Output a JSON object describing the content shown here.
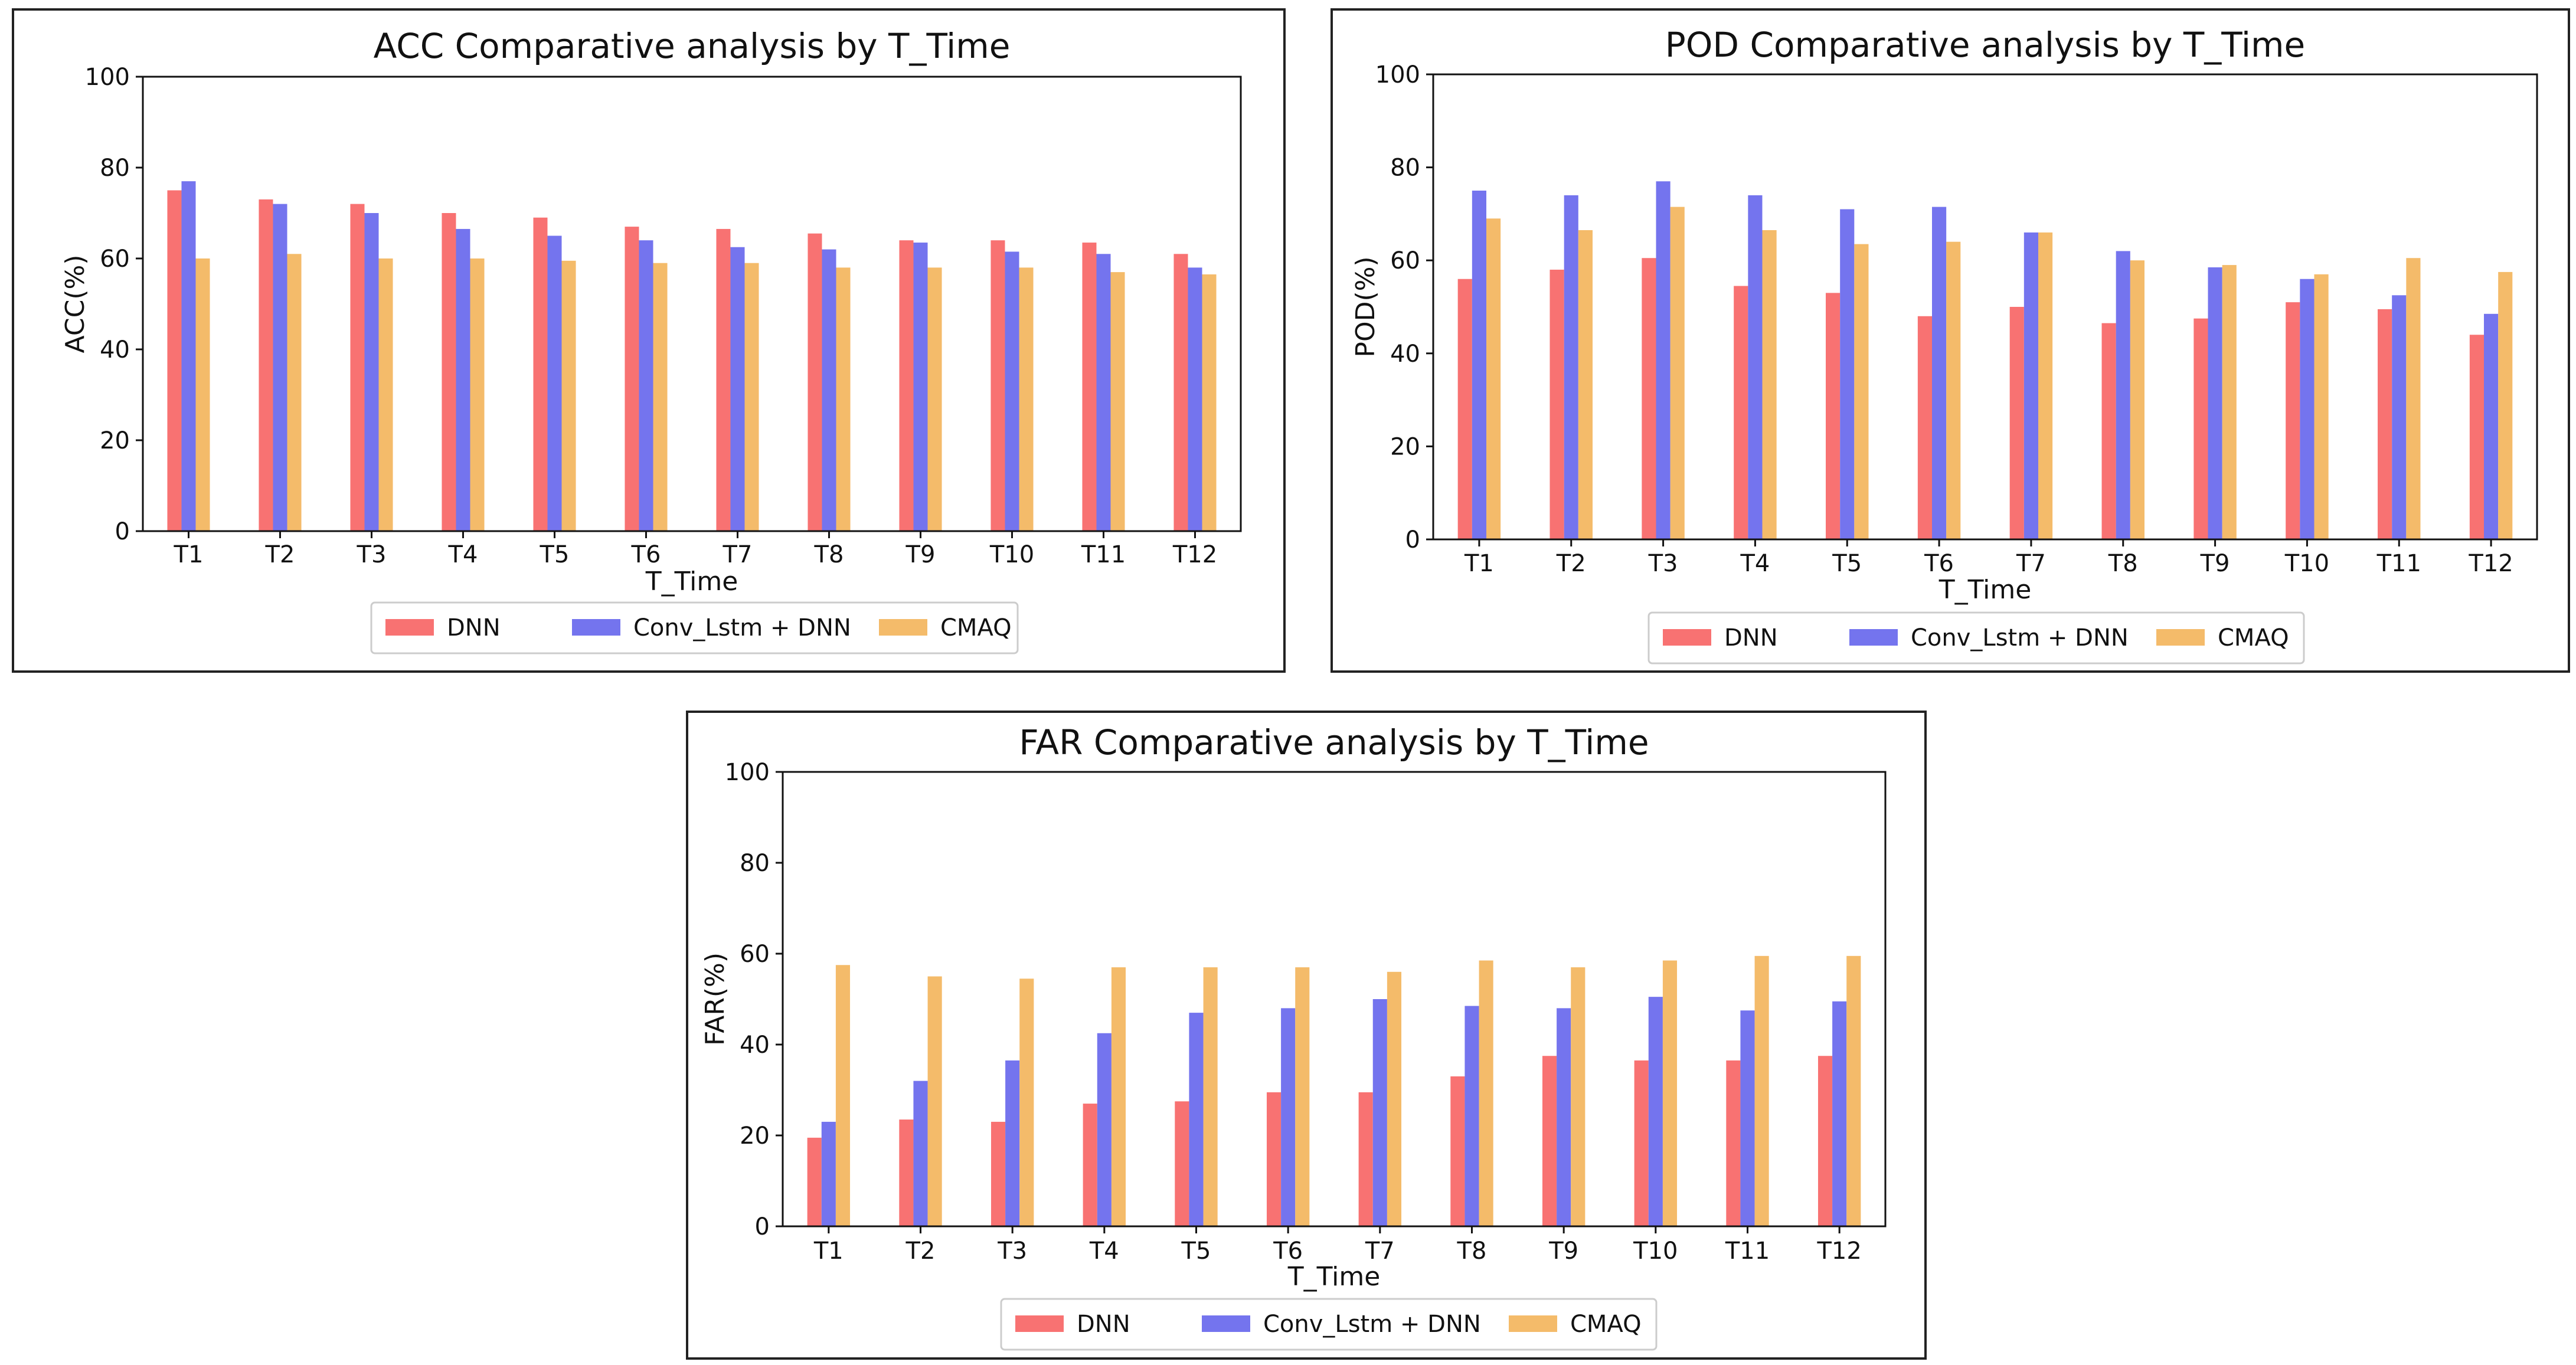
{
  "series_colors": [
    "#f87272",
    "#7474ee",
    "#f4bb6a"
  ],
  "chart_data": [
    {
      "type": "bar",
      "title": "ACC Comparative analysis by T_Time",
      "xlabel": "T_Time",
      "ylabel": "ACC(%)",
      "ylim": [
        0,
        100
      ],
      "yticks": [
        "0",
        "20",
        "40",
        "60",
        "80",
        "100"
      ],
      "legend_position": "bottom-center",
      "categories": [
        "T1",
        "T2",
        "T3",
        "T4",
        "T5",
        "T6",
        "T7",
        "T8",
        "T9",
        "T10",
        "T11",
        "T12"
      ],
      "series": [
        {
          "name": "DNN",
          "values": [
            75,
            73,
            72,
            70,
            69,
            67,
            66.5,
            65.5,
            64,
            64,
            63.5,
            61
          ]
        },
        {
          "name": "Conv_Lstm + DNN",
          "values": [
            77,
            72,
            70,
            66.5,
            65,
            64,
            62.5,
            62,
            63.5,
            61.5,
            61,
            58
          ]
        },
        {
          "name": "CMAQ",
          "values": [
            60,
            61,
            60,
            60,
            59.5,
            59,
            59,
            58,
            58,
            58,
            57,
            56.5
          ]
        }
      ]
    },
    {
      "type": "bar",
      "title": "POD Comparative analysis by T_Time",
      "xlabel": "T_Time",
      "ylabel": "POD(%)",
      "ylim": [
        0,
        100
      ],
      "yticks": [
        "0",
        "20",
        "40",
        "60",
        "80",
        "100"
      ],
      "legend_position": "bottom-center",
      "categories": [
        "T1",
        "T2",
        "T3",
        "T4",
        "T5",
        "T6",
        "T7",
        "T8",
        "T9",
        "T10",
        "T11",
        "T12"
      ],
      "series": [
        {
          "name": "DNN",
          "values": [
            56,
            58,
            60.5,
            54.5,
            53,
            48,
            50,
            46.5,
            47.5,
            51,
            49.5,
            44
          ]
        },
        {
          "name": "Conv_Lstm + DNN",
          "values": [
            75,
            74,
            77,
            74,
            71,
            71.5,
            66,
            62,
            58.5,
            56,
            52.5,
            48.5
          ]
        },
        {
          "name": "CMAQ",
          "values": [
            69,
            66.5,
            71.5,
            66.5,
            63.5,
            64,
            66,
            60,
            59,
            57,
            60.5,
            57.5
          ]
        }
      ]
    },
    {
      "type": "bar",
      "title": "FAR Comparative analysis by T_Time",
      "xlabel": "T_Time",
      "ylabel": "FAR(%)",
      "ylim": [
        0,
        100
      ],
      "yticks": [
        "0",
        "20",
        "40",
        "60",
        "80",
        "100"
      ],
      "legend_position": "bottom-center",
      "categories": [
        "T1",
        "T2",
        "T3",
        "T4",
        "T5",
        "T6",
        "T7",
        "T8",
        "T9",
        "T10",
        "T11",
        "T12"
      ],
      "series": [
        {
          "name": "DNN",
          "values": [
            19.5,
            23.5,
            23,
            27,
            27.5,
            29.5,
            29.5,
            33,
            37.5,
            36.5,
            36.5,
            37.5
          ]
        },
        {
          "name": "Conv_Lstm + DNN",
          "values": [
            23,
            32,
            36.5,
            42.5,
            47,
            48,
            50,
            48.5,
            48,
            50.5,
            47.5,
            49.5
          ]
        },
        {
          "name": "CMAQ",
          "values": [
            57.5,
            55,
            54.5,
            57,
            57,
            57,
            56,
            58.5,
            57,
            58.5,
            59.5,
            59.5
          ]
        }
      ]
    }
  ]
}
